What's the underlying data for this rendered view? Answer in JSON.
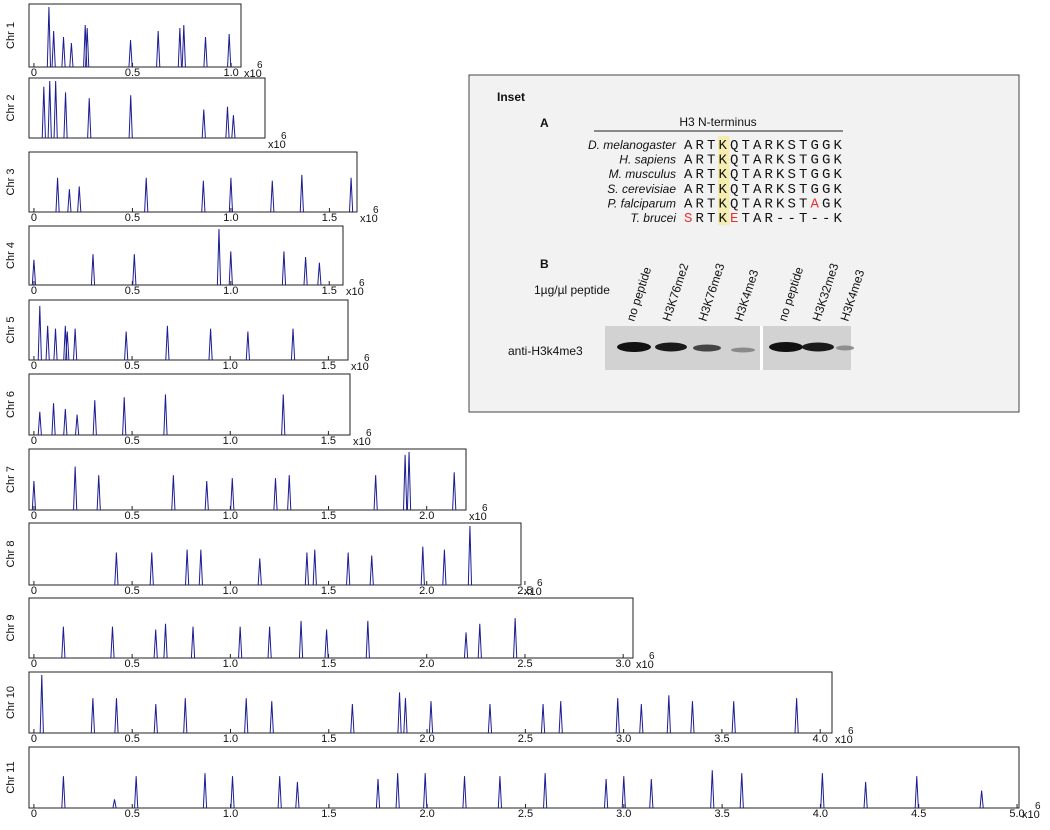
{
  "chart_data": [
    {
      "type": "spike",
      "ylabel": "Chr 1",
      "color": "#1c1c94",
      "xlim": [
        -0.025,
        1.05
      ],
      "ylim": [
        0,
        1
      ],
      "xticks": [
        0,
        0.5,
        {
          "value": 1,
          "label": "1.0"
        }
      ],
      "x_multiplier": "x10",
      "x_exponent": "6",
      "x": [
        0.076,
        0.1,
        0.15,
        0.19,
        0.26,
        0.27,
        0.49,
        0.63,
        0.74,
        0.76,
        0.87,
        0.99
      ],
      "values": [
        1.0,
        0.6,
        0.5,
        0.4,
        0.7,
        0.65,
        0.45,
        0.6,
        0.65,
        0.7,
        0.5,
        0.55
      ]
    },
    {
      "type": "spike",
      "ylabel": "Chr 2",
      "color": "#1c1c94",
      "xlim": [
        -0.025,
        1.17
      ],
      "ylim": [
        0,
        1
      ],
      "xticks": [],
      "x_multiplier": "x10",
      "x_exponent": "6",
      "x": [
        0.05,
        0.08,
        0.11,
        0.16,
        0.28,
        0.49,
        0.86,
        0.98,
        1.01
      ],
      "values": [
        0.9,
        1.0,
        1.0,
        0.8,
        0.7,
        0.75,
        0.5,
        0.55,
        0.4
      ]
    },
    {
      "type": "spike",
      "ylabel": "Chr 3",
      "color": "#1c1c94",
      "xlim": [
        -0.025,
        1.64
      ],
      "ylim": [
        0,
        1
      ],
      "xticks": [
        0,
        0.5,
        {
          "value": 1,
          "label": "1.0"
        },
        1.5
      ],
      "x_multiplier": "x10",
      "x_exponent": "6",
      "x": [
        0.12,
        0.18,
        0.23,
        0.57,
        0.86,
        1.0,
        1.21,
        1.36,
        1.61
      ],
      "values": [
        0.6,
        0.4,
        0.45,
        0.6,
        0.55,
        0.6,
        0.55,
        0.65,
        0.6
      ]
    },
    {
      "type": "spike",
      "ylabel": "Chr 4",
      "color": "#1c1c94",
      "xlim": [
        -0.025,
        1.57
      ],
      "ylim": [
        0,
        1
      ],
      "xticks": [
        0,
        0.5,
        {
          "value": 1,
          "label": "1.0"
        },
        1.5
      ],
      "x_multiplier": "x10",
      "x_exponent": "6",
      "x": [
        0.0,
        0.3,
        0.51,
        0.94,
        1.0,
        1.27,
        1.38,
        1.45
      ],
      "values": [
        0.45,
        0.55,
        0.55,
        1.0,
        0.6,
        0.6,
        0.5,
        0.4
      ]
    },
    {
      "type": "spike",
      "ylabel": "Chr 5",
      "color": "#1c1c94",
      "xlim": [
        -0.025,
        1.6
      ],
      "ylim": [
        0,
        1
      ],
      "xticks": [
        0,
        0.5,
        {
          "value": 1,
          "label": "1.0"
        },
        1.5
      ],
      "x_multiplier": "x10",
      "x_exponent": "6",
      "x": [
        0.03,
        0.07,
        0.11,
        0.16,
        0.17,
        0.21,
        0.47,
        0.68,
        0.9,
        1.09,
        1.32
      ],
      "values": [
        0.95,
        0.6,
        0.55,
        0.6,
        0.5,
        0.55,
        0.5,
        0.6,
        0.55,
        0.5,
        0.55
      ]
    },
    {
      "type": "spike",
      "ylabel": "Chr 6",
      "color": "#1c1c94",
      "xlim": [
        -0.025,
        1.61
      ],
      "ylim": [
        0,
        1
      ],
      "xticks": [
        0,
        0.5,
        {
          "value": 1,
          "label": "1.0"
        },
        1.5
      ],
      "x_multiplier": "x10",
      "x_exponent": "6",
      "x": [
        0.03,
        0.1,
        0.16,
        0.22,
        0.31,
        0.46,
        0.67,
        1.27
      ],
      "values": [
        0.4,
        0.55,
        0.45,
        0.35,
        0.6,
        0.65,
        0.7,
        0.7
      ]
    },
    {
      "type": "spike",
      "ylabel": "Chr 7",
      "color": "#1c1c94",
      "xlim": [
        -0.025,
        2.2
      ],
      "ylim": [
        0,
        1
      ],
      "xticks": [
        0,
        0.5,
        {
          "value": 1,
          "label": "1.0"
        },
        1.5,
        {
          "value": 2,
          "label": "2.0"
        }
      ],
      "x_multiplier": "x10",
      "x_exponent": "6",
      "x": [
        0.0,
        0.21,
        0.33,
        0.71,
        0.88,
        1.01,
        1.23,
        1.3,
        1.74,
        1.89,
        1.91,
        2.14
      ],
      "values": [
        0.5,
        0.75,
        0.6,
        0.6,
        0.5,
        0.55,
        0.55,
        0.6,
        0.6,
        0.95,
        1.0,
        0.65
      ]
    },
    {
      "type": "spike",
      "ylabel": "Chr 8",
      "color": "#1c1c94",
      "xlim": [
        -0.025,
        2.48
      ],
      "ylim": [
        0,
        1
      ],
      "xticks": [
        0,
        0.5,
        {
          "value": 1,
          "label": "1.0"
        },
        1.5,
        {
          "value": 2,
          "label": "2.0"
        },
        2.5
      ],
      "x_multiplier": "x10",
      "x_exponent": "6",
      "x": [
        0.42,
        0.6,
        0.78,
        0.85,
        1.15,
        1.39,
        1.43,
        1.6,
        1.72,
        1.98,
        2.09,
        2.22
      ],
      "values": [
        0.55,
        0.55,
        0.6,
        0.6,
        0.45,
        0.55,
        0.6,
        0.55,
        0.5,
        0.65,
        0.6,
        1.0
      ]
    },
    {
      "type": "spike",
      "ylabel": "Chr 9",
      "color": "#1c1c94",
      "xlim": [
        -0.025,
        3.05
      ],
      "ylim": [
        0,
        1
      ],
      "xticks": [
        0,
        0.5,
        {
          "value": 1,
          "label": "1.0"
        },
        1.5,
        {
          "value": 2,
          "label": "2.0"
        },
        2.5,
        {
          "value": 3,
          "label": "3.0"
        }
      ],
      "x_multiplier": "x10",
      "x_exponent": "6",
      "x": [
        0.15,
        0.4,
        0.62,
        0.67,
        0.81,
        1.05,
        1.2,
        1.36,
        1.49,
        1.7,
        2.2,
        2.27,
        2.45
      ],
      "values": [
        0.55,
        0.55,
        0.5,
        0.6,
        0.55,
        0.55,
        0.55,
        0.65,
        0.5,
        0.65,
        0.45,
        0.6,
        0.7
      ]
    },
    {
      "type": "spike",
      "ylabel": "Chr 10",
      "color": "#1c1c94",
      "xlim": [
        -0.025,
        4.06
      ],
      "ylim": [
        0,
        1
      ],
      "xticks": [
        0,
        0.5,
        {
          "value": 1,
          "label": "1.0"
        },
        1.5,
        {
          "value": 2,
          "label": "2.0"
        },
        2.5,
        {
          "value": 3,
          "label": "3.0"
        },
        3.5,
        {
          "value": 4,
          "label": "4.0"
        }
      ],
      "x_multiplier": "x10",
      "x_exponent": "6",
      "x": [
        0.04,
        0.3,
        0.42,
        0.62,
        0.77,
        1.08,
        1.21,
        1.62,
        1.86,
        1.89,
        2.02,
        2.32,
        2.59,
        2.68,
        2.97,
        3.09,
        3.23,
        3.35,
        3.56,
        3.88
      ],
      "values": [
        1.0,
        0.6,
        0.6,
        0.5,
        0.6,
        0.6,
        0.55,
        0.5,
        0.7,
        0.6,
        0.55,
        0.5,
        0.5,
        0.55,
        0.6,
        0.5,
        0.65,
        0.55,
        0.55,
        0.6
      ]
    },
    {
      "type": "spike",
      "ylabel": "Chr 11",
      "color": "#1c1c94",
      "xlim": [
        -0.025,
        5.01
      ],
      "ylim": [
        0,
        1
      ],
      "xticks": [
        0,
        0.5,
        {
          "value": 1,
          "label": "1.0"
        },
        1.5,
        {
          "value": 2,
          "label": "2.0"
        },
        2.5,
        {
          "value": 3,
          "label": "3.0"
        },
        3.5,
        {
          "value": 4,
          "label": "4.0"
        },
        4.5,
        {
          "value": 5,
          "label": "5.0"
        }
      ],
      "x_multiplier": "x10",
      "x_exponent": "6",
      "x": [
        0.15,
        0.41,
        0.52,
        0.87,
        1.01,
        1.25,
        1.34,
        1.75,
        1.85,
        1.99,
        2.19,
        2.37,
        2.6,
        2.91,
        3.0,
        3.14,
        3.45,
        3.6,
        4.01,
        4.23,
        4.49,
        4.82
      ],
      "values": [
        0.55,
        0.15,
        0.55,
        0.6,
        0.55,
        0.55,
        0.45,
        0.5,
        0.6,
        0.6,
        0.55,
        0.55,
        0.6,
        0.5,
        0.55,
        0.5,
        0.65,
        0.6,
        0.6,
        0.45,
        0.55,
        0.3
      ]
    }
  ],
  "inset": {
    "title": "Inset",
    "panel_a": {
      "label": "A",
      "header": "H3 N-terminus",
      "rows": [
        {
          "species": "D. melanogaster",
          "sequence": [
            "ARTKQTARKSTGGK"
          ]
        },
        {
          "species": "H. sapiens",
          "sequence": [
            "ARTKQTARKSTGGK"
          ]
        },
        {
          "species": "M. musculus",
          "sequence": [
            "ARTKQTARKSTGGK"
          ]
        },
        {
          "species": "S. cerevisiae",
          "sequence": [
            "ARTKQTARKSTGGK"
          ]
        },
        {
          "species": "P. falciparum",
          "sequence": [
            "ARTKQTARKST",
            {
              "text": "A",
              "color": "#e8312f"
            },
            "GK"
          ]
        },
        {
          "species": "T. brucei",
          "sequence": [
            {
              "text": "S",
              "color": "#e8312f"
            },
            "RTK",
            {
              "text": "E",
              "color": "#e8312f"
            },
            "TAR--T--K"
          ]
        }
      ]
    },
    "panel_b": {
      "label": "B",
      "concentration": "1µg/µl peptide",
      "antibody": "anti-H3k4me3",
      "lanes": [
        "no peptide",
        "H3K76me2",
        "H3K76me3",
        "H3K4me3",
        "no peptide",
        "H3K32me3",
        "H3K4me3"
      ]
    }
  }
}
